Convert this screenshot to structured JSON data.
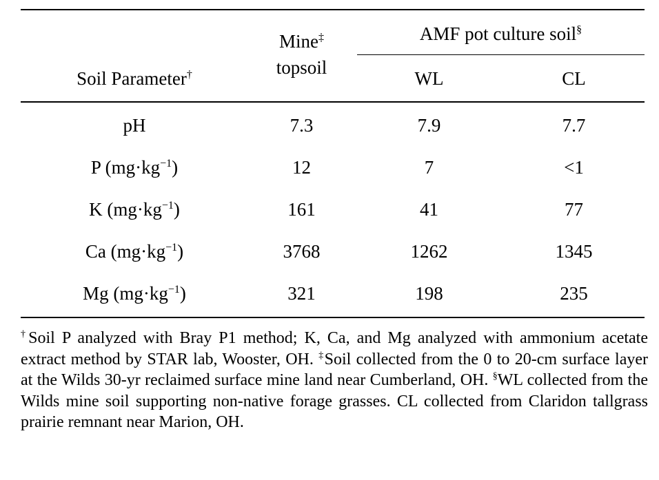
{
  "table": {
    "header": {
      "param": "Soil Parameter",
      "param_mark": "†",
      "mine_line1": "Mine",
      "mine_mark": "‡",
      "mine_line2": "topsoil",
      "amf": "AMF pot culture soil",
      "amf_mark": "§",
      "wl": "WL",
      "cl": "CL"
    },
    "rows": [
      {
        "param": "pH",
        "param_base": "",
        "unit_sup": "",
        "unit_end": "",
        "mine": "7.3",
        "wl": "7.9",
        "cl": "7.7"
      },
      {
        "param": "P (mg·kg",
        "unit_sup": "−1",
        "unit_end": ")",
        "mine": "12",
        "wl": "7",
        "cl": "<1"
      },
      {
        "param": "K (mg·kg",
        "unit_sup": "−1",
        "unit_end": ")",
        "mine": "161",
        "wl": "41",
        "cl": "77"
      },
      {
        "param": "Ca (mg·kg",
        "unit_sup": "−1",
        "unit_end": ")",
        "mine": "3768",
        "wl": "1262",
        "cl": "1345"
      },
      {
        "param": "Mg (mg·kg",
        "unit_sup": "−1",
        "unit_end": ")",
        "mine": "321",
        "wl": "198",
        "cl": "235"
      }
    ]
  },
  "footnote": {
    "mark1": "†",
    "text1": "Soil P analyzed with Bray P1 method; K, Ca, and Mg analyzed with ammonium acetate extract method by STAR lab, Wooster, OH. ",
    "mark2": "‡",
    "text2": "Soil collected from the 0 to 20-cm surface layer at the Wilds 30-yr reclaimed surface mine land near Cumberland, OH. ",
    "mark3": "§",
    "text3": "WL collected from the Wilds mine soil supporting non-native forage grasses. CL collected from Claridon tallgrass prairie remnant near Marion, OH."
  }
}
